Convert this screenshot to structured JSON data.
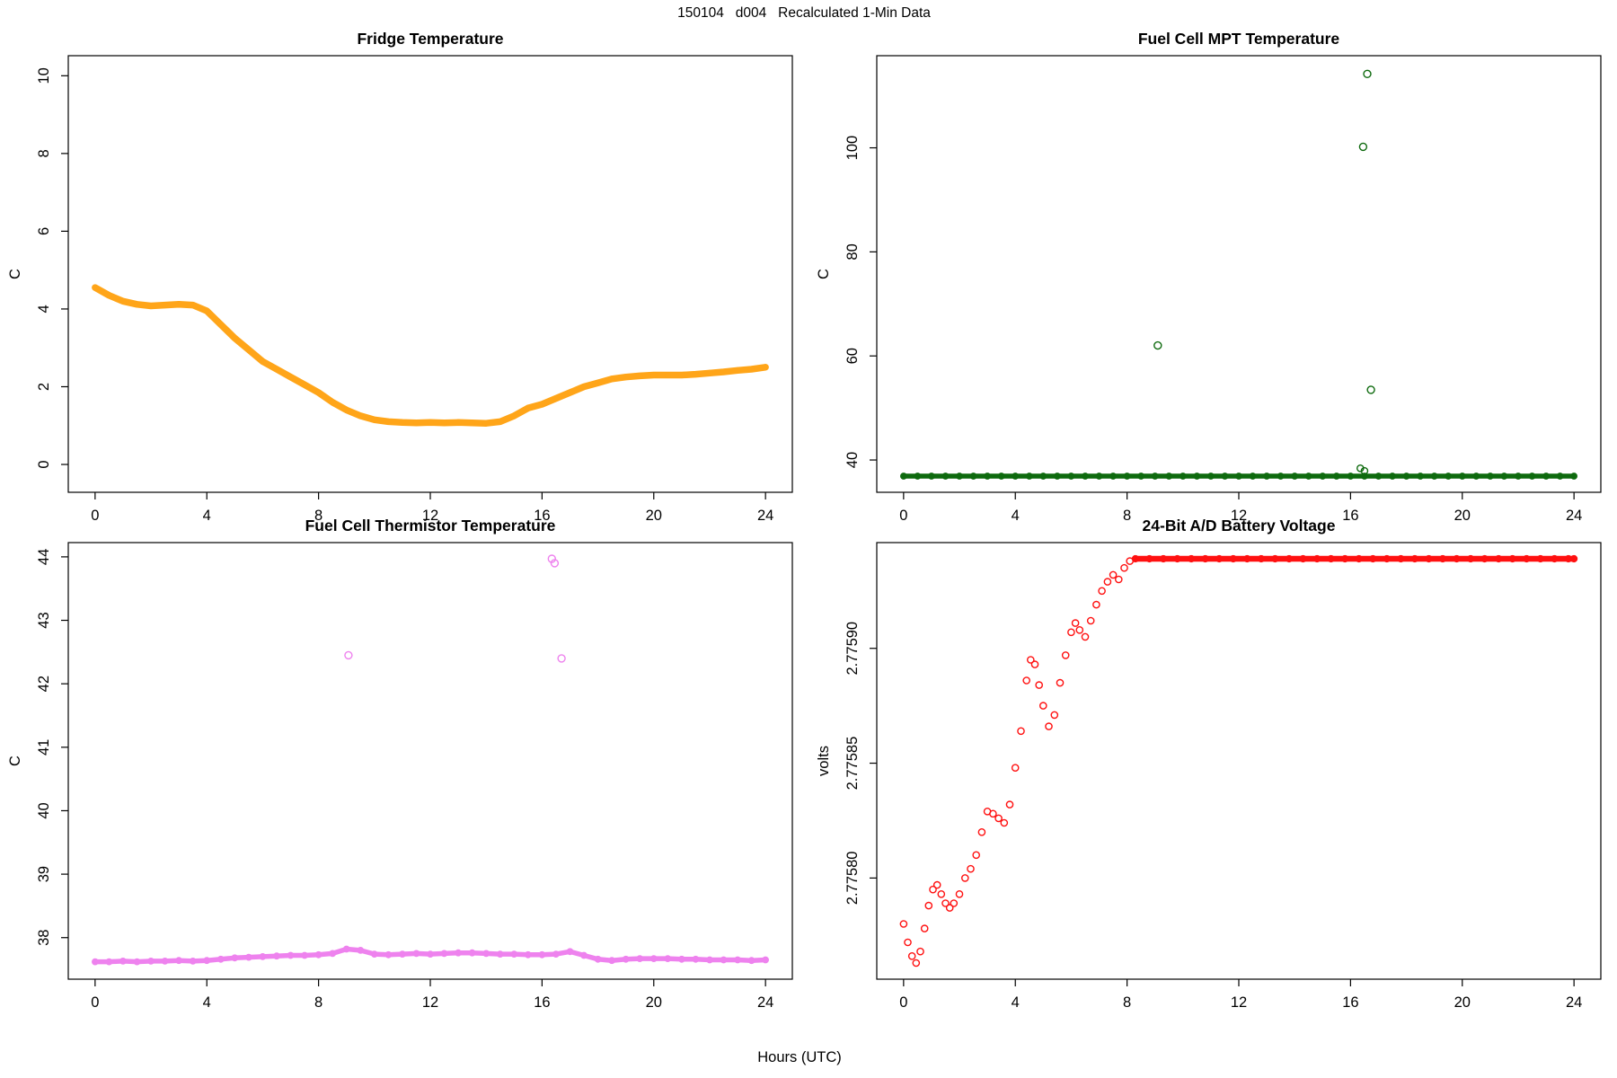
{
  "figure": {
    "title": "150104   d004   Recalculated 1-Min Data",
    "shared_xlabel": "Hours (UTC)",
    "background": "#ffffff",
    "axis_color": "#000000"
  },
  "chart_data": [
    {
      "id": "fridge-temperature",
      "type": "scatter",
      "title": "Fridge Temperature",
      "xlabel": "",
      "ylabel": "C",
      "color": "#FFA519",
      "xlim": [
        0,
        24
      ],
      "ylim": [
        -0.3,
        10.1
      ],
      "xticks": [
        0,
        4,
        8,
        12,
        16,
        20,
        24
      ],
      "yticks": [
        0,
        2,
        4,
        6,
        8,
        10
      ],
      "series": [
        {
          "name": "fridge-temp-trace",
          "marker": "dot",
          "marker_r": 3.5,
          "connect": true,
          "line_width": 7.5,
          "x": [
            0,
            0.5,
            1,
            1.5,
            2,
            2.5,
            3,
            3.5,
            4,
            4.5,
            5,
            5.5,
            6,
            6.5,
            7,
            7.5,
            8,
            8.5,
            9,
            9.5,
            10,
            10.5,
            11,
            11.5,
            12,
            12.5,
            13,
            13.5,
            14,
            14.5,
            15,
            15.5,
            16,
            16.5,
            17,
            17.5,
            18,
            18.5,
            19,
            19.5,
            20,
            20.5,
            21,
            21.5,
            22,
            22.5,
            23,
            23.5,
            24
          ],
          "y": [
            4.55,
            4.35,
            4.2,
            4.12,
            4.08,
            4.1,
            4.12,
            4.1,
            3.95,
            3.6,
            3.25,
            2.95,
            2.65,
            2.45,
            2.25,
            2.05,
            1.85,
            1.6,
            1.4,
            1.25,
            1.15,
            1.1,
            1.08,
            1.07,
            1.08,
            1.07,
            1.08,
            1.07,
            1.06,
            1.1,
            1.25,
            1.45,
            1.55,
            1.7,
            1.85,
            2.0,
            2.1,
            2.2,
            2.25,
            2.28,
            2.3,
            2.3,
            2.3,
            2.32,
            2.35,
            2.38,
            2.42,
            2.45,
            2.5
          ]
        }
      ]
    },
    {
      "id": "fuel-cell-mpt-temperature",
      "type": "scatter",
      "title": "Fuel Cell MPT Temperature",
      "xlabel": "",
      "ylabel": "C",
      "color": "#0E6A0E",
      "xlim": [
        0,
        24
      ],
      "ylim": [
        36.9,
        114.6
      ],
      "xticks": [
        0,
        4,
        8,
        12,
        16,
        20,
        24
      ],
      "yticks": [
        40,
        60,
        80,
        100
      ],
      "series": [
        {
          "name": "mpt-baseline",
          "marker": "o",
          "marker_r": 3.2,
          "connect": true,
          "line_width": 5.5,
          "x": [
            0,
            0.5,
            1,
            1.5,
            2,
            2.5,
            3,
            3.5,
            4,
            4.5,
            5,
            5.5,
            6,
            6.5,
            7,
            7.5,
            8,
            8.5,
            9,
            9.5,
            10,
            10.5,
            11,
            11.5,
            12,
            12.5,
            13,
            13.5,
            14,
            14.5,
            15,
            15.5,
            16,
            16.5,
            17,
            17.5,
            18,
            18.5,
            19,
            19.5,
            20,
            20.5,
            21,
            21.5,
            22,
            22.5,
            23,
            23.5,
            24
          ],
          "y_const": 36.9
        },
        {
          "name": "mpt-near-line-points",
          "marker": "o",
          "marker_r": 3.6,
          "connect": false,
          "x": [
            16.35,
            16.5
          ],
          "y": [
            38.4,
            37.9
          ]
        },
        {
          "name": "mpt-outliers",
          "marker": "o",
          "marker_r": 4,
          "connect": false,
          "x": [
            9.1,
            16.45,
            16.6,
            16.73
          ],
          "y": [
            62,
            100.2,
            114.2,
            53.5
          ]
        }
      ]
    },
    {
      "id": "fuel-cell-thermistor-temperature",
      "type": "scatter",
      "title": "Fuel Cell Thermistor Temperature",
      "xlabel": "",
      "ylabel": "C",
      "color": "#EE82EE",
      "xlim": [
        0,
        24
      ],
      "ylim": [
        37.6,
        43.97
      ],
      "xticks": [
        0,
        4,
        8,
        12,
        16,
        20,
        24
      ],
      "yticks": [
        38,
        39,
        40,
        41,
        42,
        43,
        44
      ],
      "series": [
        {
          "name": "thermistor-baseline",
          "marker": "o",
          "marker_r": 3.2,
          "connect": true,
          "line_width": 5.5,
          "x": [
            0,
            0.5,
            1,
            1.5,
            2,
            2.5,
            3,
            3.5,
            4,
            4.5,
            5,
            5.5,
            6,
            6.5,
            7,
            7.5,
            8,
            8.5,
            9,
            9.5,
            10,
            10.5,
            11,
            11.5,
            12,
            12.5,
            13,
            13.5,
            14,
            14.5,
            15,
            15.5,
            16,
            16.5,
            17,
            17.5,
            18,
            18.5,
            19,
            19.5,
            20,
            20.5,
            21,
            21.5,
            22,
            22.5,
            23,
            23.5,
            24
          ],
          "y": [
            37.62,
            37.62,
            37.63,
            37.62,
            37.63,
            37.63,
            37.64,
            37.63,
            37.64,
            37.66,
            37.68,
            37.69,
            37.7,
            37.71,
            37.72,
            37.72,
            37.73,
            37.75,
            37.82,
            37.8,
            37.74,
            37.73,
            37.74,
            37.75,
            37.74,
            37.75,
            37.76,
            37.76,
            37.75,
            37.74,
            37.74,
            37.73,
            37.73,
            37.74,
            37.78,
            37.72,
            37.66,
            37.64,
            37.66,
            37.67,
            37.67,
            37.67,
            37.66,
            37.66,
            37.65,
            37.65,
            37.65,
            37.64,
            37.65
          ]
        },
        {
          "name": "thermistor-outliers",
          "marker": "o",
          "marker_r": 4,
          "connect": false,
          "x": [
            9.07,
            16.35,
            16.45,
            16.7
          ],
          "y": [
            42.45,
            43.97,
            43.9,
            42.4
          ]
        }
      ]
    },
    {
      "id": "battery-voltage",
      "type": "scatter",
      "title": "24-Bit A/D Battery Voltage",
      "xlabel": "",
      "ylabel": "volts",
      "color": "#FF1010",
      "xlim": [
        0,
        24
      ],
      "ylim": [
        2.775763,
        2.775939
      ],
      "xticks": [
        0,
        4,
        8,
        12,
        16,
        20,
        24
      ],
      "yticks": [
        2.7758,
        2.77585,
        2.7759
      ],
      "ytick_labels": [
        "2.77580",
        "2.77585",
        "2.77590"
      ],
      "series": [
        {
          "name": "voltage-rise",
          "marker": "o",
          "marker_r": 3.6,
          "connect": false,
          "x": [
            0,
            0.15,
            0.3,
            0.45,
            0.6,
            0.75,
            0.9,
            1.05,
            1.2,
            1.35,
            1.5,
            1.65,
            1.8,
            2.0,
            2.2,
            2.4,
            2.6,
            2.8,
            3.0,
            3.2,
            3.4,
            3.6,
            3.8,
            4.0,
            4.2,
            4.4,
            4.55,
            4.7,
            4.85,
            5.0,
            5.2,
            5.4,
            5.6,
            5.8,
            6.0,
            6.15,
            6.3,
            6.5,
            6.7,
            6.9,
            7.1,
            7.3,
            7.5,
            7.7,
            7.9,
            8.1
          ],
          "y": [
            2.77578,
            2.775772,
            2.775766,
            2.775763,
            2.775768,
            2.775778,
            2.775788,
            2.775795,
            2.775797,
            2.775793,
            2.775789,
            2.775787,
            2.775789,
            2.775793,
            2.7758,
            2.775804,
            2.77581,
            2.77582,
            2.775829,
            2.775828,
            2.775826,
            2.775824,
            2.775832,
            2.775848,
            2.775864,
            2.775886,
            2.775895,
            2.775893,
            2.775884,
            2.775875,
            2.775866,
            2.775871,
            2.775885,
            2.775897,
            2.775907,
            2.775911,
            2.775908,
            2.775905,
            2.775912,
            2.775919,
            2.775925,
            2.775929,
            2.775932,
            2.77593,
            2.775935,
            2.775938
          ]
        },
        {
          "name": "voltage-saturated",
          "marker": "o",
          "marker_r": 3.4,
          "connect": true,
          "line_width": 6.5,
          "x": [
            8.3,
            8.8,
            9.3,
            9.8,
            10.3,
            10.8,
            11.3,
            11.8,
            12.3,
            12.8,
            13.3,
            13.8,
            14.3,
            14.8,
            15.3,
            15.8,
            16.3,
            16.8,
            17.3,
            17.8,
            18.3,
            18.8,
            19.3,
            19.8,
            20.3,
            20.8,
            21.3,
            21.8,
            22.3,
            22.8,
            23.3,
            23.8,
            24
          ],
          "y_const": 2.775939
        }
      ]
    }
  ]
}
